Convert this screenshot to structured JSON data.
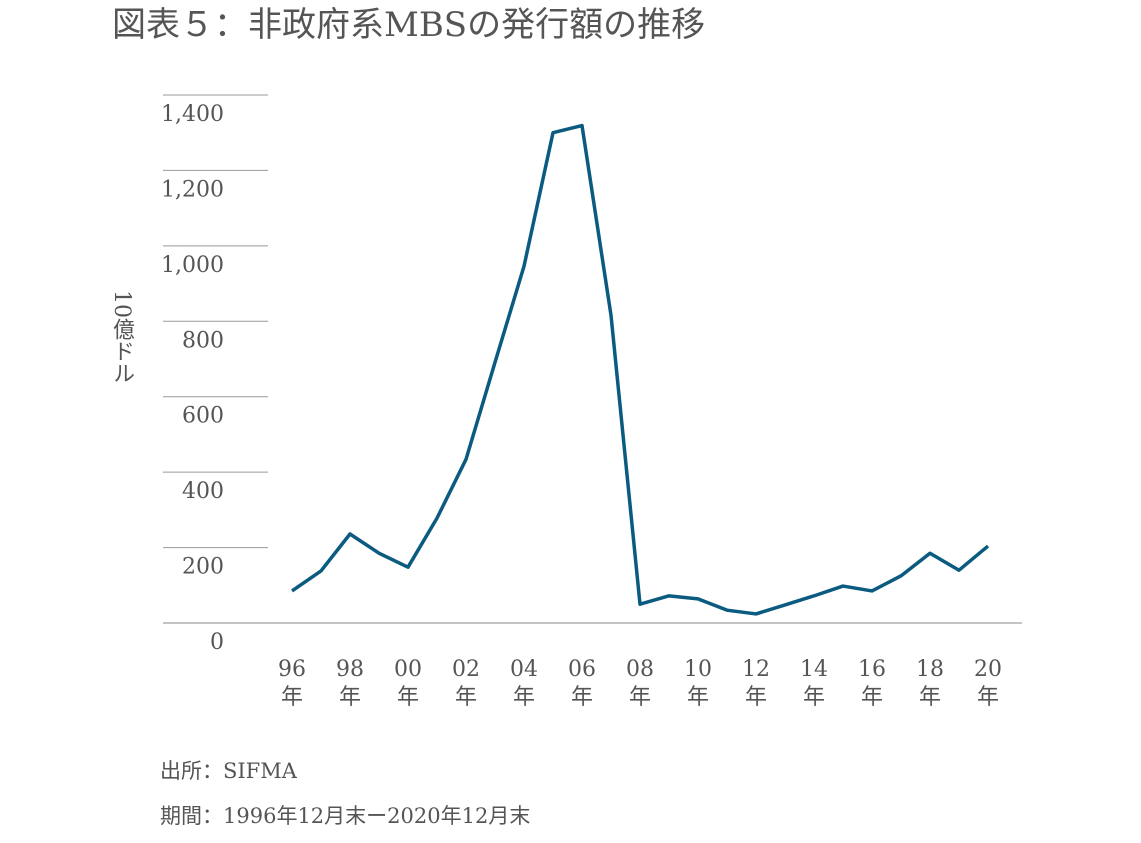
{
  "chart_data": {
    "type": "line",
    "title": "図表５：非政府系MBSの発行額の推移",
    "y_label": "10億ドル",
    "categories": [
      "96年",
      null,
      "98年",
      null,
      "00年",
      null,
      "02年",
      null,
      "04年",
      null,
      "06年",
      null,
      "08年",
      null,
      "10年",
      null,
      "12年",
      null,
      "14年",
      null,
      "16年",
      null,
      "18年",
      null,
      "20年"
    ],
    "series": [
      {
        "name": "非政府系MBSの発行額",
        "color": "#0b5a80",
        "values": [
          85,
          138,
          236,
          185,
          148,
          278,
          434,
          691,
          946,
          1300,
          1319,
          816,
          50,
          72,
          64,
          34,
          24,
          48,
          72,
          98,
          85,
          125,
          185,
          140,
          204
        ]
      }
    ],
    "ylim": [
      0,
      1400
    ],
    "yticks": [
      0,
      200,
      400,
      600,
      800,
      {
        "value": 1000,
        "label": "1,000"
      },
      {
        "value": 1200,
        "label": "1,200"
      },
      {
        "value": 1400,
        "label": "1,400"
      }
    ],
    "notes": [
      "出所：SIFMA",
      "期間：1996年12月末ー2020年12月末"
    ]
  }
}
